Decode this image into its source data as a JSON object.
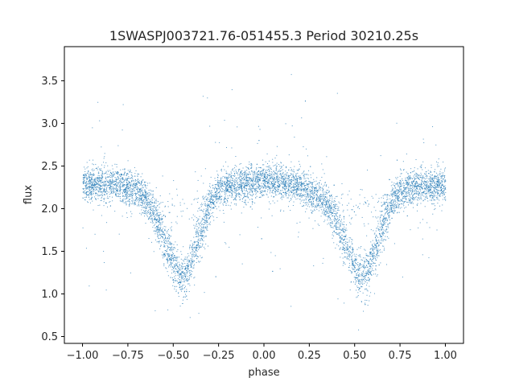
{
  "chart_data": {
    "type": "scatter",
    "title": "1SWASPJ003721.76-051455.3 Period 30210.25s",
    "xlabel": "phase",
    "ylabel": "flux",
    "xlim": [
      -1.1,
      1.1
    ],
    "ylim": [
      0.42,
      3.9
    ],
    "xticks": [
      -1.0,
      -0.75,
      -0.5,
      -0.25,
      0.0,
      0.25,
      0.5,
      0.75,
      1.0
    ],
    "xtick_labels": [
      "−1.00",
      "−0.75",
      "−0.50",
      "−0.25",
      "0.00",
      "0.25",
      "0.50",
      "0.75",
      "1.00"
    ],
    "yticks": [
      0.5,
      1.0,
      1.5,
      2.0,
      2.5,
      3.0,
      3.5
    ],
    "ytick_labels": [
      "0.5",
      "1.0",
      "1.5",
      "2.0",
      "2.5",
      "3.0",
      "3.5"
    ],
    "grid": false,
    "legend": "none",
    "point_color": "#1f77b4",
    "phase_range": [
      -1.0,
      1.0
    ],
    "series": [
      {
        "x": [
          -1.0,
          -0.9,
          -0.8,
          -0.7,
          -0.65,
          -0.6,
          -0.55,
          -0.5,
          -0.47,
          -0.45,
          -0.43,
          -0.4,
          -0.35,
          -0.3,
          -0.25,
          -0.2,
          -0.1,
          0.0,
          0.1,
          0.2,
          0.3,
          0.35,
          0.4,
          0.45,
          0.5,
          0.53,
          0.55,
          0.57,
          0.6,
          0.65,
          0.7,
          0.75,
          0.8,
          0.9,
          1.0
        ],
        "y": [
          2.28,
          2.3,
          2.28,
          2.22,
          2.12,
          1.92,
          1.62,
          1.35,
          1.22,
          1.2,
          1.23,
          1.4,
          1.75,
          2.05,
          2.22,
          2.27,
          2.3,
          2.32,
          2.3,
          2.26,
          2.15,
          2.05,
          1.85,
          1.55,
          1.3,
          1.22,
          1.2,
          1.24,
          1.42,
          1.78,
          2.05,
          2.2,
          2.25,
          2.28,
          2.28
        ]
      }
    ]
  }
}
